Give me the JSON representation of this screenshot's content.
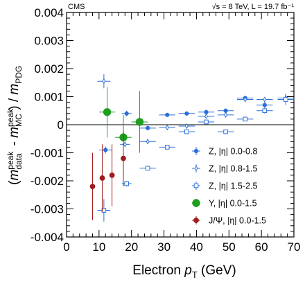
{
  "chart_data": {
    "type": "scatter",
    "experiment_label": "CMS",
    "energy_label": "√s = 8 TeV, L = 19.7 fb⁻¹",
    "xlabel": "Electron p_T (GeV)",
    "ylabel": "(m_data^peak - m_MC^peak) / m_PDG",
    "xlim": [
      0,
      70
    ],
    "ylim": [
      -0.004,
      0.004
    ],
    "x_ticks": [
      0,
      10,
      20,
      30,
      40,
      50,
      60,
      70
    ],
    "y_ticks": [
      -0.004,
      -0.003,
      -0.002,
      -0.001,
      0,
      0.001,
      0.002,
      0.003,
      0.004
    ],
    "x_tick_labels": [
      "0",
      "10",
      "20",
      "30",
      "40",
      "50",
      "60",
      "70"
    ],
    "y_tick_labels": [
      "-0.004",
      "-0.003",
      "-0.002",
      "-0.001",
      "0",
      "0.001",
      "0.002",
      "0.003",
      "0.004"
    ],
    "reference_line_y": 0,
    "legend_position": "bottom-right",
    "series": [
      {
        "name": "Z,     |η| 0.0-0.8",
        "color": "#2b6fd8",
        "marker": "filled-circle-small",
        "points": [
          {
            "x": 12.0,
            "y": -0.0009,
            "xerr": 2.0,
            "yerr": 0.00012
          },
          {
            "x": 18.5,
            "y": 0.0004,
            "xerr": 1.5,
            "yerr": 0.0001
          },
          {
            "x": 25.0,
            "y": -0.00012,
            "xerr": 2.5,
            "yerr": 8e-05
          },
          {
            "x": 31.0,
            "y": 0.00035,
            "xerr": 2.5,
            "yerr": 4e-05
          },
          {
            "x": 37.0,
            "y": 0.0004,
            "xerr": 2.5,
            "yerr": 4e-05
          },
          {
            "x": 43.0,
            "y": 0.00045,
            "xerr": 2.5,
            "yerr": 4e-05
          },
          {
            "x": 49.0,
            "y": 0.0005,
            "xerr": 2.5,
            "yerr": 4e-05
          },
          {
            "x": 55.0,
            "y": 0.00095,
            "xerr": 2.5,
            "yerr": 5e-05
          },
          {
            "x": 61.0,
            "y": 0.0007,
            "xerr": 2.5,
            "yerr": 0.00015
          },
          {
            "x": 67.5,
            "y": 0.0009,
            "xerr": 2.5,
            "yerr": 0.0001
          }
        ]
      },
      {
        "name": "Z,     |η| 0.8-1.5",
        "color": "#2b6fd8",
        "marker": "open-diamond",
        "points": [
          {
            "x": 11.5,
            "y": 0.00155,
            "xerr": 2.0,
            "yerr": 0.00025
          },
          {
            "x": 18.0,
            "y": -0.0007,
            "xerr": 1.5,
            "yerr": 0.0001
          },
          {
            "x": 25.0,
            "y": -0.0006,
            "xerr": 2.5,
            "yerr": 8e-05
          },
          {
            "x": 31.0,
            "y": -0.0001,
            "xerr": 2.5,
            "yerr": 5e-05
          },
          {
            "x": 37.0,
            "y": -5e-05,
            "xerr": 2.5,
            "yerr": 4e-05
          },
          {
            "x": 43.0,
            "y": 0.0003,
            "xerr": 2.5,
            "yerr": 4e-05
          },
          {
            "x": 49.0,
            "y": 0.00035,
            "xerr": 2.5,
            "yerr": 4e-05
          },
          {
            "x": 55.0,
            "y": 0.0009,
            "xerr": 2.5,
            "yerr": 5e-05
          },
          {
            "x": 61.0,
            "y": 0.0009,
            "xerr": 2.5,
            "yerr": 6e-05
          },
          {
            "x": 67.5,
            "y": 0.00095,
            "xerr": 2.5,
            "yerr": 0.00015
          }
        ]
      },
      {
        "name": "Z,     |η| 1.5-2.5",
        "color": "#2b6fd8",
        "marker": "open-square",
        "points": [
          {
            "x": 11.5,
            "y": -0.00305,
            "xerr": 2.0,
            "yerr": 0.0004
          },
          {
            "x": 18.5,
            "y": -0.0021,
            "xerr": 1.5,
            "yerr": 0.0001
          },
          {
            "x": 25.0,
            "y": -0.00155,
            "xerr": 2.5,
            "yerr": 6e-05
          },
          {
            "x": 31.0,
            "y": -0.0008,
            "xerr": 2.5,
            "yerr": 5e-05
          },
          {
            "x": 37.0,
            "y": -0.00025,
            "xerr": 2.5,
            "yerr": 4e-05
          },
          {
            "x": 43.0,
            "y": 0.0001,
            "xerr": 2.5,
            "yerr": 4e-05
          },
          {
            "x": 49.0,
            "y": -0.00025,
            "xerr": 2.5,
            "yerr": 5e-05
          },
          {
            "x": 55.0,
            "y": 0.0002,
            "xerr": 2.5,
            "yerr": 6e-05
          },
          {
            "x": 61.0,
            "y": 0.0005,
            "xerr": 2.5,
            "yerr": 0.0001
          },
          {
            "x": 67.5,
            "y": 0.0009,
            "xerr": 2.5,
            "yerr": 0.0002
          }
        ]
      },
      {
        "name": "Υ,     |η| 0.0-1.5",
        "color": "#1f9e1f",
        "marker": "filled-circle-large",
        "points": [
          {
            "x": 12.5,
            "y": 0.00045,
            "xerr": 2.5,
            "yerr": 0.0009
          },
          {
            "x": 17.5,
            "y": -0.00045,
            "xerr": 2.5,
            "yerr": 0.0008
          },
          {
            "x": 22.5,
            "y": 0.0001,
            "xerr": 2.5,
            "yerr": 0.0011
          }
        ]
      },
      {
        "name": "J/Ψ, |η| 0.0-1.5",
        "color": "#a01c1c",
        "marker": "filled-circle-medium",
        "points": [
          {
            "x": 8.0,
            "y": -0.0022,
            "xerr": 0.0,
            "yerr": 0.0012
          },
          {
            "x": 11.0,
            "y": -0.0019,
            "xerr": 0.0,
            "yerr": 0.0012
          },
          {
            "x": 14.0,
            "y": -0.0018,
            "xerr": 0.0,
            "yerr": 0.0011
          },
          {
            "x": 17.5,
            "y": -0.0012,
            "xerr": 0.0,
            "yerr": 0.001
          }
        ]
      }
    ]
  }
}
